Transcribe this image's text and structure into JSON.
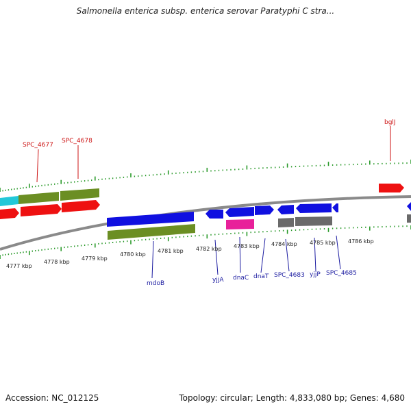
{
  "title": "Salmonella enterica subsp. enterica serovar Paratyphi C stra...",
  "footer": {
    "accession": "Accession: NC_012125",
    "topology": "Topology: circular; Length: 4,833,080 bp; Genes: 4,680"
  },
  "colors": {
    "blue": "#1010e0",
    "red": "#ee1111",
    "green": "#6b8e23",
    "cyan": "#22c8d8",
    "magenta": "#e8209a",
    "gray": "#6a6a6a",
    "tick": "#2a9a2a",
    "label_blue": "#1a1aa0",
    "label_red": "#cc1111"
  },
  "kbp_labels": [
    "4777 kbp",
    "4778 kbp",
    "4779 kbp",
    "4780 kbp",
    "4781 kbp",
    "4782 kbp",
    "4783 kbp",
    "4784 kbp",
    "4785 kbp",
    "4786 kbp"
  ],
  "gene_labels_top": [
    "SPC_4677",
    "SPC_4678",
    "bglJ"
  ],
  "gene_labels_bottom": [
    "mdoB",
    "yjjA",
    "dnaC",
    "dnaT",
    "SPC_4683",
    "yjjP",
    "SPC_4685"
  ]
}
